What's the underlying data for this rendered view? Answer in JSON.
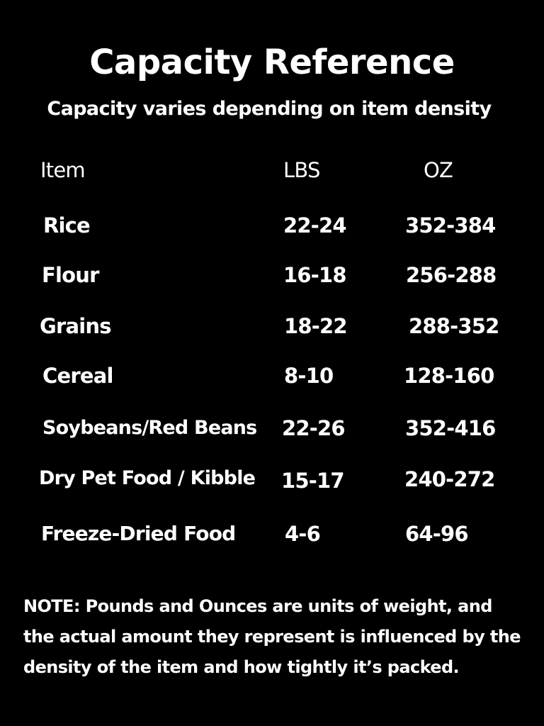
{
  "title": "Capacity Reference",
  "subtitle": "Capacity varies depending on item density",
  "table": {
    "headers": [
      "Item",
      "LBS",
      "OZ"
    ],
    "rows": [
      {
        "item": "Rice",
        "lbs": "22-24",
        "oz": "352-384"
      },
      {
        "item": "Flour",
        "lbs": "16-18",
        "oz": "256-288"
      },
      {
        "item": "Grains",
        "lbs": "18-22",
        "oz": "288-352"
      },
      {
        "item": "Cereal",
        "lbs": "8-10",
        "oz": "128-160"
      },
      {
        "item": "Soybeans/Red Beans",
        "lbs": "22-26",
        "oz": "352-416"
      },
      {
        "item": "Dry Pet Food / Kibble",
        "lbs": "15-17",
        "oz": "240-272"
      },
      {
        "item": "Freeze-Dried Food",
        "lbs": "4-6",
        "oz": "64-96"
      }
    ]
  },
  "note": "NOTE:  Pounds and Ounces are units of weight, and the actual amount they represent is influenced by the density of the item and how tightly it’s packed.",
  "colors": {
    "background": "#000000",
    "text": "#ffffff"
  }
}
